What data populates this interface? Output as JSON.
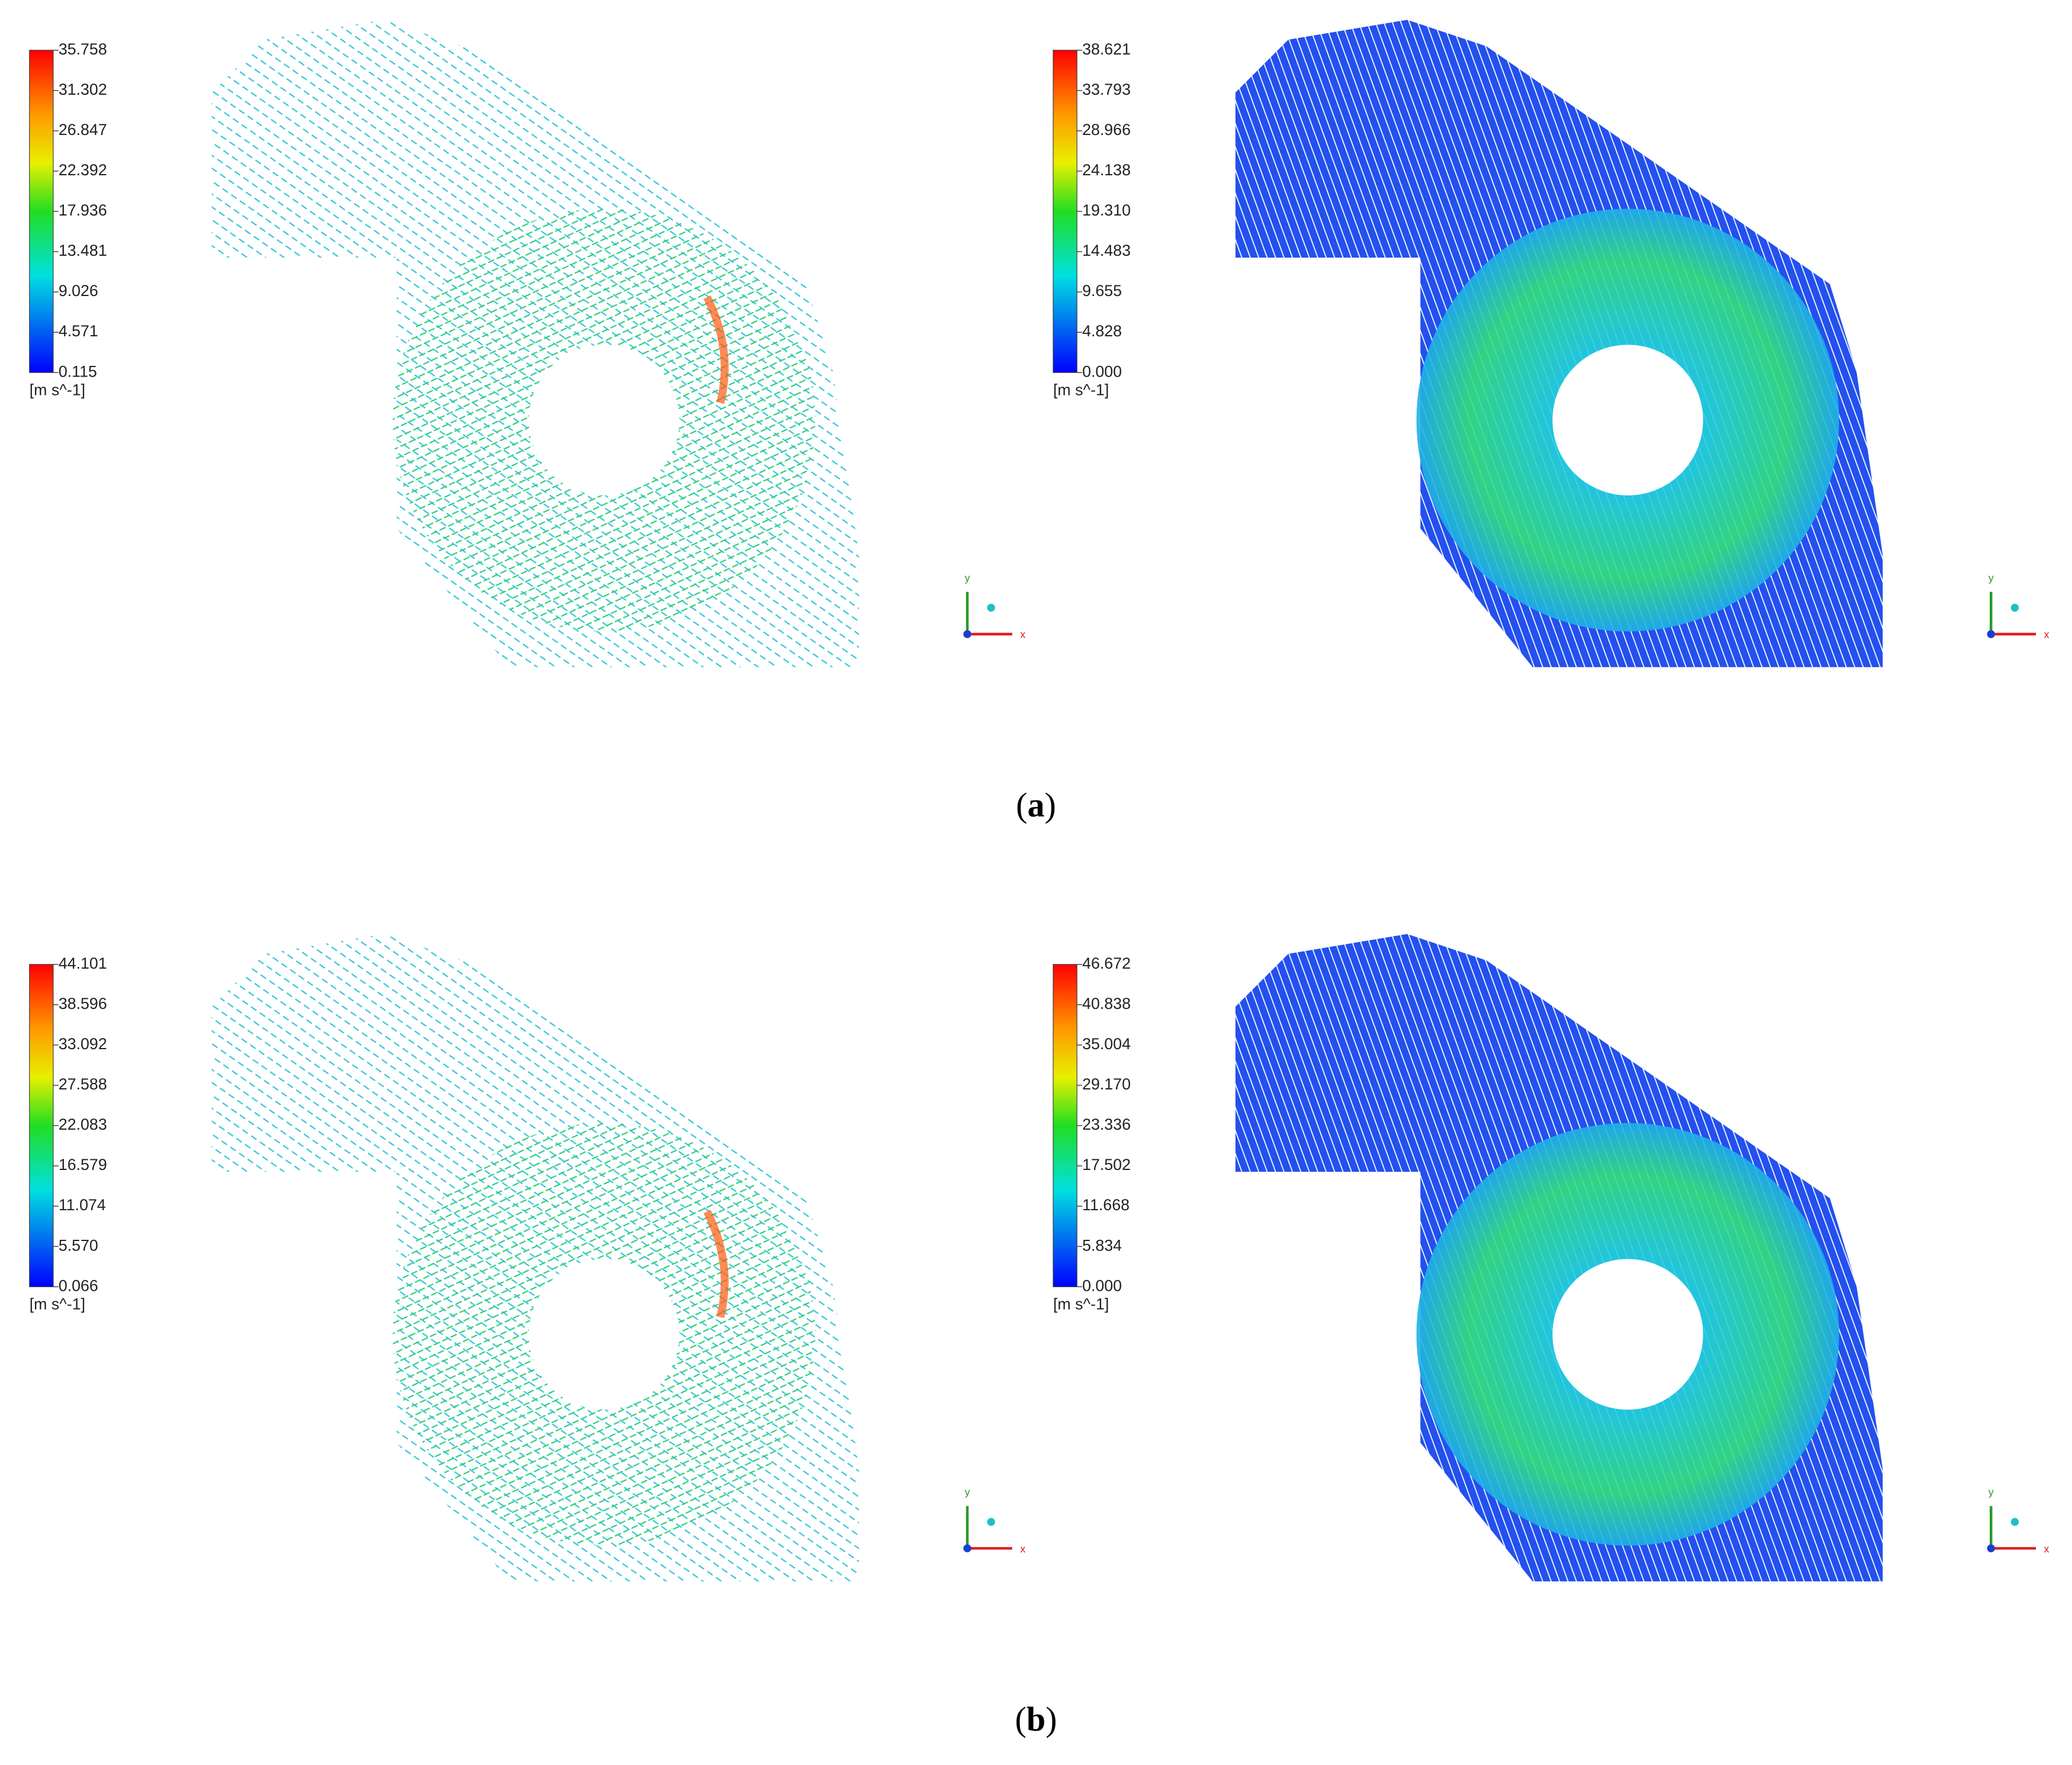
{
  "panels": [
    {
      "legend": [
        "35.758",
        "31.302",
        "26.847",
        "22.392",
        "17.936",
        "13.481",
        "9.026",
        "4.571",
        "0.115"
      ],
      "unit": "[m s^-1]"
    },
    {
      "legend": [
        "38.621",
        "33.793",
        "28.966",
        "24.138",
        "19.310",
        "14.483",
        "9.655",
        "4.828",
        "0.000"
      ],
      "unit": "[m s^-1]"
    },
    {
      "legend": [
        "44.101",
        "38.596",
        "33.092",
        "27.588",
        "22.083",
        "16.579",
        "11.074",
        "5.570",
        "0.066"
      ],
      "unit": "[m s^-1]"
    },
    {
      "legend": [
        "46.672",
        "40.838",
        "35.004",
        "29.170",
        "23.336",
        "17.502",
        "11.668",
        "5.834",
        "0.000"
      ],
      "unit": "[m s^-1]"
    }
  ],
  "triad": {
    "y": "y",
    "x": "x"
  },
  "captions": [
    {
      "open": "(",
      "letter": "a",
      "close": ")"
    },
    {
      "open": "(",
      "letter": "b",
      "close": ")"
    }
  ]
}
